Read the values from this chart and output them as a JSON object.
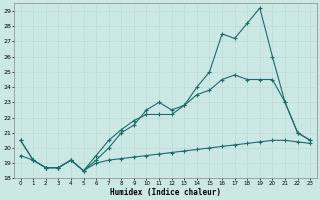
{
  "xlabel": "Humidex (Indice chaleur)",
  "bg_color": "#cce8e4",
  "grid_color": "#b8d8d4",
  "line_color": "#1a6b6b",
  "xlim": [
    -0.5,
    23.5
  ],
  "ylim": [
    18,
    29.5
  ],
  "yticks": [
    18,
    19,
    20,
    21,
    22,
    23,
    24,
    25,
    26,
    27,
    28,
    29
  ],
  "xticks": [
    0,
    1,
    2,
    3,
    4,
    5,
    6,
    7,
    8,
    9,
    10,
    11,
    12,
    13,
    14,
    15,
    16,
    17,
    18,
    19,
    20,
    21,
    22,
    23
  ],
  "line1_x": [
    0,
    1,
    2,
    3,
    4,
    5,
    6,
    7,
    8,
    9,
    10,
    11,
    12,
    13,
    14,
    15,
    16,
    17,
    18,
    19,
    20,
    21,
    22,
    23
  ],
  "line1_y": [
    20.5,
    19.2,
    18.7,
    18.7,
    19.2,
    18.5,
    19.2,
    20.0,
    21.0,
    21.5,
    22.5,
    23.0,
    22.5,
    22.8,
    24.0,
    25.0,
    27.5,
    27.2,
    28.2,
    29.2,
    26.0,
    23.0,
    21.0,
    20.5
  ],
  "line2_x": [
    0,
    1,
    2,
    3,
    4,
    5,
    6,
    7,
    8,
    9,
    10,
    11,
    12,
    13,
    14,
    15,
    16,
    17,
    18,
    19,
    20,
    21,
    22,
    23
  ],
  "line2_y": [
    20.5,
    19.2,
    18.7,
    18.7,
    19.2,
    18.5,
    19.5,
    20.5,
    21.2,
    21.8,
    22.2,
    22.2,
    22.2,
    22.8,
    23.5,
    23.8,
    24.5,
    24.8,
    24.5,
    24.5,
    24.5,
    23.0,
    21.0,
    20.5
  ],
  "line3_x": [
    0,
    1,
    2,
    3,
    4,
    5,
    6,
    7,
    8,
    9,
    10,
    11,
    12,
    13,
    14,
    15,
    16,
    17,
    18,
    19,
    20,
    21,
    22,
    23
  ],
  "line3_y": [
    19.5,
    19.2,
    18.7,
    18.7,
    19.2,
    18.5,
    19.0,
    19.2,
    19.3,
    19.4,
    19.5,
    19.6,
    19.7,
    19.8,
    19.9,
    20.0,
    20.1,
    20.2,
    20.3,
    20.4,
    20.5,
    20.5,
    20.4,
    20.3
  ]
}
